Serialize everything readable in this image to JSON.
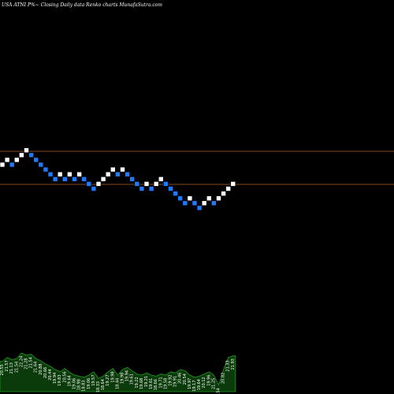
{
  "header": {
    "title": "USA ATNI P%~  Closing Daily data  Renko  charts MunafaSutra.com"
  },
  "colors": {
    "background": "#000000",
    "up_brick": "#ffffff",
    "down_brick": "#1e7bff",
    "level_line": "#b8612a",
    "volume_fill": "#0b3a0b",
    "volume_line": "#1e9a1e"
  },
  "chart_data": {
    "type": "renko",
    "bricks": [
      "up",
      "up",
      "down",
      "up",
      "up",
      "up",
      "down",
      "down",
      "down",
      "down",
      "down",
      "down",
      "up",
      "down",
      "up",
      "down",
      "up",
      "down",
      "down",
      "down",
      "up",
      "up",
      "up",
      "up",
      "down",
      "up",
      "down",
      "down",
      "down",
      "down",
      "up",
      "down",
      "up",
      "up",
      "down",
      "down",
      "down",
      "down",
      "down",
      "up",
      "down",
      "down",
      "up",
      "up",
      "down",
      "up",
      "up",
      "up",
      "up"
    ],
    "levels": [
      21.6,
      20.4
    ],
    "volume_labels": [
      "20.55",
      "21.57",
      "21.13",
      "21.54",
      "22.24",
      "21.28",
      "21.54",
      "21.64",
      "20.88",
      "20.66",
      "20.44",
      "19.94",
      "19.83",
      "20.56",
      "19.64",
      "19.06",
      "18.98",
      "18.83",
      "19.06",
      "19.57",
      "18.33",
      "18.64",
      "19.27",
      "19.98",
      "18.44",
      "19.98",
      "19.94",
      "19.61",
      "19.22",
      "19.68",
      "19.21",
      "19.61",
      "18.66",
      "19.71",
      "19.58",
      "19.92",
      "19.91",
      "20.46",
      "20.54",
      "19.97",
      "19.17",
      "19.64",
      "20.12",
      "19.96",
      "21.25",
      "20.54",
      "20.82",
      "21.33",
      "21.93"
    ],
    "volume_heights": [
      0.55,
      0.62,
      0.58,
      0.6,
      0.7,
      0.66,
      0.68,
      0.6,
      0.56,
      0.5,
      0.46,
      0.4,
      0.36,
      0.42,
      0.35,
      0.3,
      0.28,
      0.26,
      0.3,
      0.36,
      0.24,
      0.28,
      0.36,
      0.42,
      0.3,
      0.4,
      0.44,
      0.38,
      0.32,
      0.3,
      0.34,
      0.3,
      0.28,
      0.32,
      0.3,
      0.36,
      0.34,
      0.4,
      0.38,
      0.3,
      0.26,
      0.28,
      0.32,
      0.36,
      0.3,
      0.12,
      0.4,
      0.62,
      0.65
    ]
  }
}
